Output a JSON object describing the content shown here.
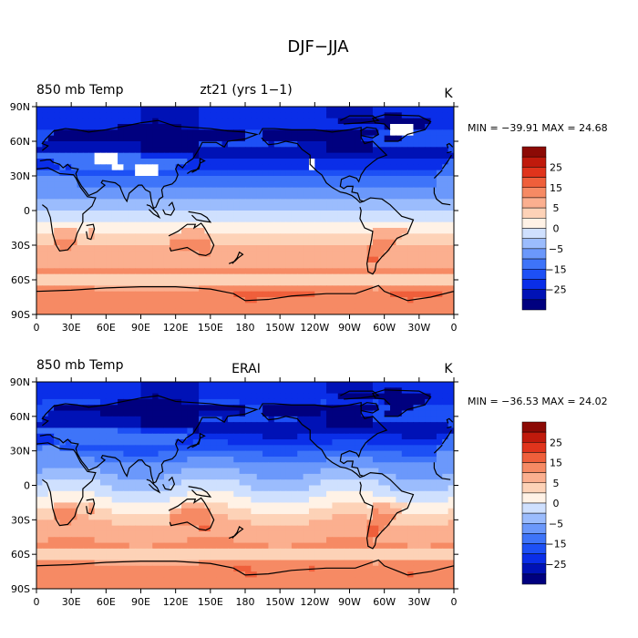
{
  "figure": {
    "title": "DJF−JJA"
  },
  "colorbar": {
    "levels": [
      -30,
      -25,
      -20,
      -15,
      -10,
      -5,
      -2.5,
      0,
      2.5,
      5,
      10,
      15,
      20,
      25,
      30
    ],
    "colors": [
      "#00007f",
      "#0012b6",
      "#0a2ee8",
      "#1d50f5",
      "#3e74f9",
      "#6b98fb",
      "#9bbcfd",
      "#cfe0fe",
      "#fff2e6",
      "#fdd2b7",
      "#fbaf8f",
      "#f68a64",
      "#ef5f3b",
      "#e0341c",
      "#c01a0c",
      "#8c0a05"
    ],
    "labels": [
      "25",
      "15",
      "5",
      "0",
      "−5",
      "−15",
      "−25"
    ]
  },
  "panels": [
    {
      "name": "model",
      "left_title": "850 mb Temp",
      "center_title": "zt21 (yrs 1−1)",
      "units": "K",
      "stats": "MIN = −39.91  MAX =   24.68",
      "missing_color": "#ffffff"
    },
    {
      "name": "reanalysis",
      "left_title": "850 mb Temp",
      "center_title": "ERAI",
      "units": "K",
      "stats": "MIN = −36.53  MAX =   24.02",
      "missing_color": null
    }
  ],
  "axes": {
    "x_ticks": [
      "0",
      "30E",
      "60E",
      "90E",
      "120E",
      "150E",
      "180",
      "150W",
      "120W",
      "90W",
      "60W",
      "30W",
      "0"
    ],
    "y_ticks": [
      "90N",
      "60N",
      "30N",
      "0",
      "30S",
      "60S",
      "90S"
    ]
  },
  "chart_data": [
    {
      "type": "heatmap",
      "title": "850 mb Temp",
      "subtitle": "zt21 (yrs 1−1)",
      "units": "K",
      "min": -39.91,
      "max": 24.68,
      "x_range": [
        0,
        360
      ],
      "y_range": [
        -90,
        90
      ],
      "colorbar_levels": [
        -30,
        -25,
        -20,
        -15,
        -10,
        -5,
        -2.5,
        0,
        2.5,
        5,
        10,
        15,
        20,
        25,
        30
      ]
    },
    {
      "type": "heatmap",
      "title": "850 mb Temp",
      "subtitle": "ERAI",
      "units": "K",
      "min": -36.53,
      "max": 24.02,
      "x_range": [
        0,
        360
      ],
      "y_range": [
        -90,
        90
      ],
      "colorbar_levels": [
        -30,
        -25,
        -20,
        -15,
        -10,
        -5,
        -2.5,
        0,
        2.5,
        5,
        10,
        15,
        20,
        25,
        30
      ]
    }
  ]
}
